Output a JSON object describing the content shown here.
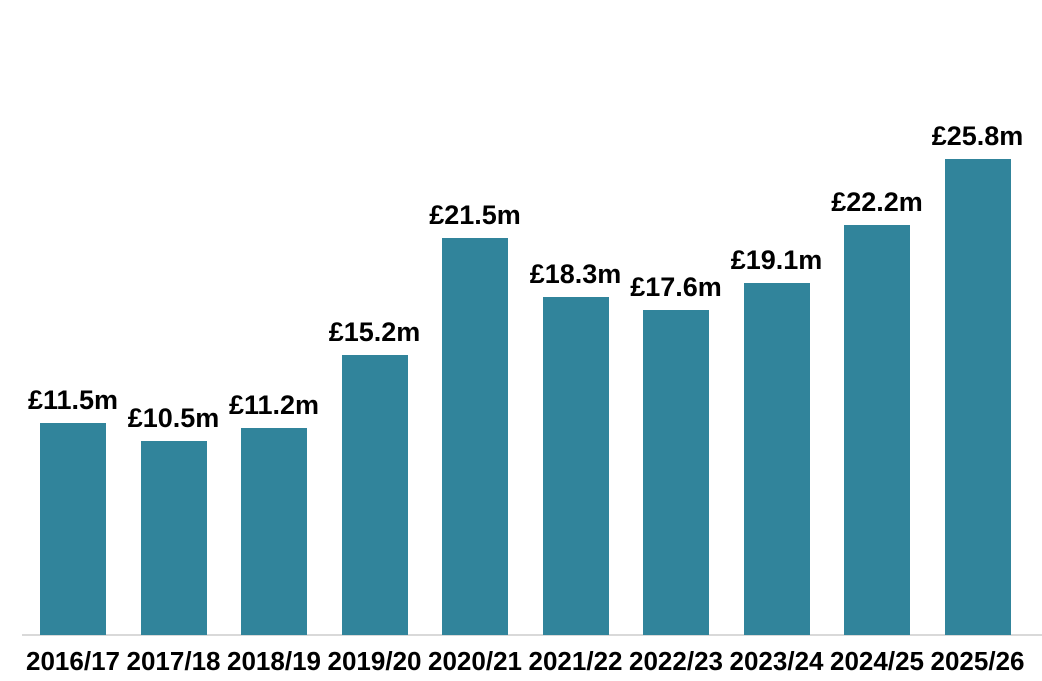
{
  "chart_data": {
    "type": "bar",
    "title": "",
    "xlabel": "",
    "ylabel": "",
    "categories": [
      "2016/17",
      "2017/18",
      "2018/19",
      "2019/20",
      "2020/21",
      "2021/22",
      "2022/23",
      "2023/24",
      "2024/25",
      "2025/26"
    ],
    "values": [
      11.5,
      10.5,
      11.2,
      15.2,
      21.5,
      18.3,
      17.6,
      19.1,
      22.2,
      25.8
    ],
    "data_labels": [
      "£11.5m",
      "£10.5m",
      "£11.2m",
      "£15.2m",
      "£21.5m",
      "£18.3m",
      "£17.6m",
      "£19.1m",
      "£22.2m",
      "£25.8m"
    ],
    "unit": "£m",
    "ylim": [
      0,
      27
    ],
    "grid": false,
    "legend": "none",
    "y_axis_visible": false,
    "colors": {
      "bar_fill": "#31849B",
      "baseline": "#D9D9D9",
      "label_text": "#000000",
      "background": "#FFFFFF"
    }
  }
}
